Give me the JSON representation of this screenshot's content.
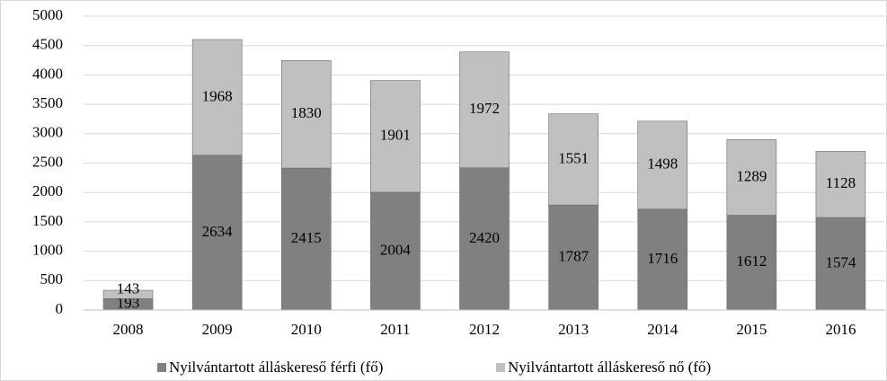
{
  "chart_data": {
    "type": "stacked_bar",
    "categories": [
      "2008",
      "2009",
      "2010",
      "2011",
      "2012",
      "2013",
      "2014",
      "2015",
      "2016"
    ],
    "series": [
      {
        "name": "Nyilvántartott álláskereső férfi (fő)",
        "color": "#808080",
        "values": [
          193,
          2634,
          2415,
          2004,
          2420,
          1787,
          1716,
          1612,
          1574
        ]
      },
      {
        "name": "Nyilvántartott álláskereső nő (fő)",
        "color": "#c0c0c0",
        "values": [
          143,
          1968,
          1830,
          1901,
          1972,
          1551,
          1498,
          1289,
          1128
        ]
      }
    ],
    "ylim": [
      0,
      5000
    ],
    "yticks": [
      0,
      500,
      1000,
      1500,
      2000,
      2500,
      3000,
      3500,
      4000,
      4500,
      5000
    ],
    "grid": true,
    "legend": "bottom"
  }
}
